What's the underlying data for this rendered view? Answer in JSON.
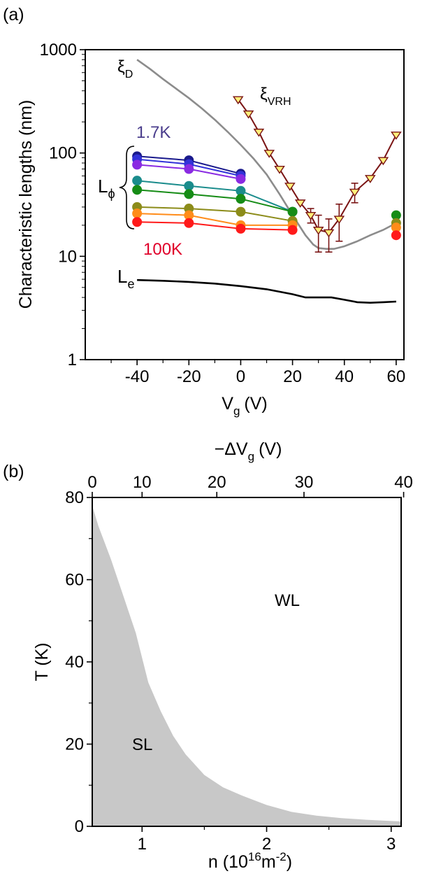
{
  "panels": {
    "a_label": "(a)",
    "b_label": "(b)"
  },
  "chart_data": [
    {
      "type": "line",
      "panel": "(a)",
      "xlabel": "V",
      "xlabel_sub": "g",
      "xlabel_unit": "(V)",
      "ylabel": "Characteristic lengths (nm)",
      "y_scale": "log",
      "xlim": [
        -60,
        63
      ],
      "ylim": [
        1,
        1000
      ],
      "x_ticks": [
        -40,
        -20,
        0,
        20,
        40,
        60
      ],
      "x_tick_labels": [
        "-40",
        "-20",
        "0",
        "20",
        "40",
        "60"
      ],
      "y_ticks": [
        1,
        10,
        100,
        1000
      ],
      "y_tick_labels": [
        "1",
        "10",
        "100",
        "1000"
      ],
      "annotations": {
        "xi_d": {
          "main": "ξ",
          "sub": "D"
        },
        "xi_vrh": {
          "main": "ξ",
          "sub": "VRH"
        },
        "l_phi": {
          "main": "L",
          "sub": "ϕ"
        },
        "l_e": {
          "main": "L",
          "sub": "e"
        },
        "t_low": "1.7K",
        "t_high": "100K"
      },
      "colors": {
        "xi_d": "#8c8c8c",
        "xi_vrh": "#7a1414",
        "xi_vrh_marker": "#fff07a",
        "l_e": "#000000",
        "label_low": "#4a3d8c",
        "label_high": "#e0002a"
      },
      "xi_d_curve": {
        "x": [
          -40,
          -35,
          -30,
          -25,
          -20,
          -15,
          -10,
          -5,
          0,
          5,
          10,
          15,
          20,
          25,
          28,
          30,
          33,
          36,
          40,
          45,
          50,
          55,
          60
        ],
        "y": [
          800,
          650,
          520,
          420,
          340,
          270,
          210,
          160,
          120,
          88,
          62,
          40,
          25,
          16,
          13,
          12,
          11.8,
          11.8,
          12.5,
          14,
          16,
          18,
          21
        ]
      },
      "l_e_curve": {
        "x": [
          -40,
          -30,
          -20,
          -10,
          0,
          10,
          20,
          25,
          30,
          35,
          40,
          45,
          50,
          55,
          60
        ],
        "y": [
          5.9,
          5.8,
          5.65,
          5.45,
          5.15,
          4.8,
          4.3,
          4.0,
          4.0,
          4.0,
          3.8,
          3.6,
          3.55,
          3.6,
          3.65
        ]
      },
      "xi_vrh_data": {
        "x": [
          -1,
          3,
          7,
          11,
          15,
          19,
          23,
          27,
          30,
          34,
          38,
          44,
          50,
          55,
          60
        ],
        "y": [
          330,
          240,
          160,
          100,
          70,
          48,
          33,
          25,
          18,
          17,
          23,
          42,
          57,
          85,
          150
        ],
        "err": [
          0,
          0,
          0,
          0,
          0,
          0,
          0,
          4,
          7,
          6,
          9,
          9,
          0,
          0,
          0
        ]
      },
      "l_phi_series": [
        {
          "color": "#1a1a8c",
          "x": [
            -40,
            -20,
            0
          ],
          "y": [
            93,
            85,
            63
          ]
        },
        {
          "color": "#3333d9",
          "x": [
            -40,
            -20,
            0
          ],
          "y": [
            87,
            78,
            60
          ]
        },
        {
          "color": "#8a2be2",
          "x": [
            -40,
            -20,
            0
          ],
          "y": [
            77,
            70,
            56
          ]
        },
        {
          "color": "#1a8c8c",
          "x": [
            -40,
            -20,
            0,
            20
          ],
          "y": [
            54,
            48,
            43,
            27
          ]
        },
        {
          "color": "#168c16",
          "x": [
            -40,
            -20,
            0,
            20,
            60
          ],
          "y": [
            44,
            40,
            36,
            27,
            25
          ]
        },
        {
          "color": "#8c8c1a",
          "x": [
            -40,
            -20,
            0,
            20,
            60
          ],
          "y": [
            30,
            29,
            27,
            22,
            21
          ]
        },
        {
          "color": "#ff8c1a",
          "x": [
            -40,
            -20,
            0,
            20,
            60
          ],
          "y": [
            26,
            25,
            20,
            20,
            19
          ]
        },
        {
          "color": "#ff1a1a",
          "x": [
            -40,
            -20,
            0,
            20,
            60
          ],
          "y": [
            21.5,
            21,
            18.5,
            18,
            16
          ]
        }
      ]
    },
    {
      "type": "area",
      "panel": "(b)",
      "xlabel": "n (10",
      "xlabel_sup1": "16",
      "xlabel_mid": "m",
      "xlabel_sup2": "-2",
      "xlabel_end": ")",
      "top_xlabel": "−ΔV",
      "top_xlabel_sub": "g",
      "top_xlabel_unit": "(V)",
      "ylabel": "T (K)",
      "xlim": [
        0.6,
        3.08
      ],
      "ylim": [
        0,
        80
      ],
      "x_ticks": [
        1,
        2,
        3
      ],
      "x_tick_labels": [
        "1",
        "2",
        "3"
      ],
      "top_ticks_n": [
        0.6,
        1.0,
        1.6,
        2.3,
        3.1
      ],
      "top_tick_labels": [
        "0",
        "10",
        "20",
        "30",
        "40"
      ],
      "y_ticks": [
        0,
        20,
        40,
        60,
        80
      ],
      "y_tick_labels": [
        "0",
        "20",
        "40",
        "60",
        "80"
      ],
      "regions": {
        "SL": "SL",
        "WL": "WL"
      },
      "fill_color": "#c8c8c8",
      "boundary": {
        "x": [
          0.6,
          0.65,
          0.75,
          0.85,
          0.95,
          1.05,
          1.15,
          1.25,
          1.35,
          1.5,
          1.65,
          1.8,
          2.0,
          2.2,
          2.4,
          2.6,
          2.8,
          3.0,
          3.08
        ],
        "y": [
          78,
          73,
          65,
          56,
          47,
          35,
          28,
          22,
          17.5,
          12.5,
          9.5,
          7.5,
          5.2,
          3.5,
          2.6,
          2.0,
          1.6,
          1.3,
          1.2
        ]
      }
    }
  ]
}
